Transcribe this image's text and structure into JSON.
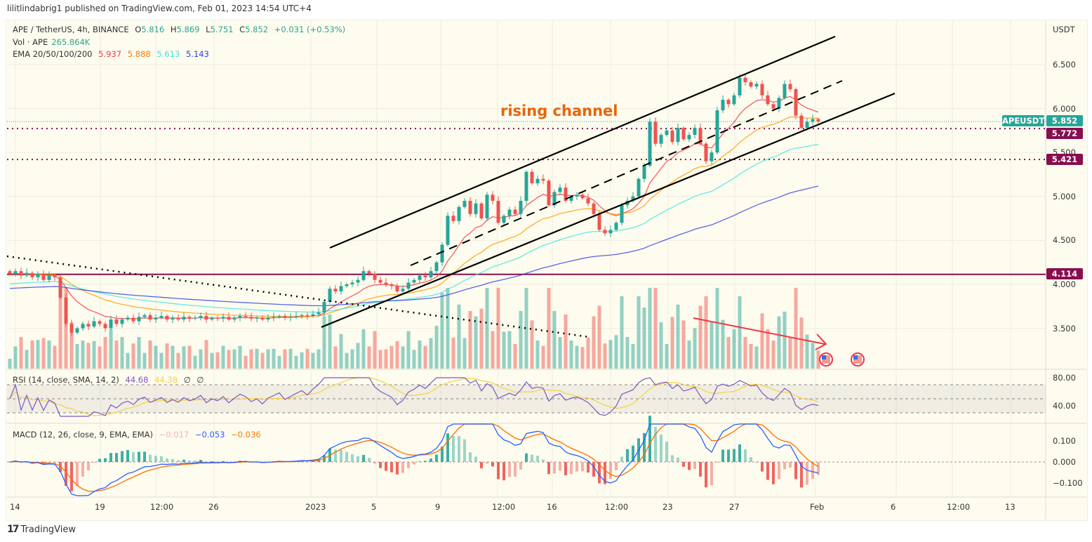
{
  "publisher_line": "lilitlindabrig1 published on TradingView.com, Feb 01, 2023 14:54 UTC+4",
  "legend": {
    "symbol": "APE / TetherUS, 4h, BINANCE",
    "o_label": "O",
    "o": "5.816",
    "h_label": "H",
    "h": "5.869",
    "l_label": "L",
    "l": "5.751",
    "c_label": "C",
    "c": "5.852",
    "change": "+0.031 (+0.53%)",
    "vol_label": "Vol · APE",
    "vol": "265.864K",
    "ema_label": "EMA 20/50/100/200",
    "ema20": "5.937",
    "ema50": "5.888",
    "ema100": "5.613",
    "ema200": "5.143",
    "rsi_label": "RSI (14, close, SMA, 14, 2)",
    "rsi": "44.68",
    "rsi_sma": "44.38",
    "rsi_extra1": "∅",
    "rsi_extra2": "∅",
    "macd_label": "MACD (12, 26, close, 9, EMA, EMA)",
    "macd_hist": "−0.017",
    "macd": "−0.053",
    "macd_signal": "−0.036"
  },
  "price_axis": {
    "unit": "USDT",
    "ticks": [
      "6.500",
      "6.000",
      "5.500",
      "5.000",
      "4.500",
      "4.000",
      "3.500"
    ]
  },
  "rsi_axis": {
    "ticks": [
      "80.00",
      "40.00"
    ]
  },
  "macd_axis": {
    "ticks": [
      "0.100",
      "0.000",
      "−0.100"
    ]
  },
  "time_axis": {
    "ticks": [
      "14",
      "19",
      "12:00",
      "26",
      "2023",
      "5",
      "9",
      "12:00",
      "16",
      "12:00",
      "23",
      "27",
      "Feb",
      "6",
      "12:00",
      "13"
    ]
  },
  "tags": {
    "symbol": "APEUSDT",
    "last": "5.852",
    "level1": "5.772",
    "level2": "5.421",
    "level3": "4.114"
  },
  "annotation": "rising channel",
  "brand": "TradingView",
  "colors": {
    "up": "#26a69a",
    "down": "#ef5350",
    "level": "#880e4f",
    "ema20": "#f23645",
    "ema50": "#ff9800",
    "ema100": "#3ce6e6",
    "ema200": "#2c3ee8",
    "rsi": "#7e57c2",
    "rsi_sma": "#f5d342",
    "macd": "#2962ff",
    "signal": "#ff6d00",
    "annotation": "#e8650a",
    "arrow": "#f23645"
  },
  "chart_data": {
    "type": "candlestick",
    "symbol": "APE / TetherUS",
    "interval": "4h",
    "exchange": "BINANCE",
    "ylim": [
      3.2,
      6.9
    ],
    "horizontal_levels": [
      5.772,
      5.421,
      4.114
    ],
    "last_price": 5.852,
    "closes": [
      4.12,
      4.15,
      4.1,
      4.13,
      4.08,
      4.12,
      4.05,
      4.1,
      4.08,
      3.85,
      3.55,
      3.45,
      3.5,
      3.55,
      3.52,
      3.58,
      3.55,
      3.5,
      3.6,
      3.55,
      3.6,
      3.62,
      3.58,
      3.63,
      3.65,
      3.6,
      3.62,
      3.64,
      3.6,
      3.62,
      3.6,
      3.63,
      3.61,
      3.62,
      3.64,
      3.6,
      3.62,
      3.61,
      3.63,
      3.6,
      3.62,
      3.64,
      3.63,
      3.61,
      3.62,
      3.6,
      3.62,
      3.63,
      3.64,
      3.62,
      3.63,
      3.64,
      3.65,
      3.64,
      3.66,
      3.68,
      3.8,
      3.95,
      3.92,
      3.98,
      4.0,
      4.02,
      4.05,
      4.15,
      4.12,
      4.05,
      4.02,
      4.0,
      3.98,
      3.92,
      3.95,
      4.02,
      4.05,
      4.1,
      4.08,
      4.15,
      4.25,
      4.45,
      4.78,
      4.72,
      4.88,
      4.95,
      4.8,
      4.92,
      4.75,
      5.02,
      4.95,
      4.7,
      4.78,
      4.85,
      4.8,
      4.95,
      5.28,
      5.15,
      5.2,
      5.18,
      4.9,
      5.05,
      5.1,
      4.95,
      5.0,
      5.02,
      4.98,
      4.92,
      4.8,
      4.62,
      4.58,
      4.62,
      4.7,
      4.9,
      4.95,
      5.0,
      5.2,
      5.35,
      5.85,
      5.6,
      5.7,
      5.75,
      5.62,
      5.78,
      5.65,
      5.7,
      5.78,
      5.6,
      5.4,
      5.5,
      5.98,
      6.1,
      6.05,
      6.15,
      6.35,
      6.3,
      6.25,
      6.28,
      6.15,
      6.05,
      6.0,
      6.12,
      6.28,
      6.22,
      5.92,
      5.78,
      5.85,
      5.88,
      5.852
    ]
  }
}
